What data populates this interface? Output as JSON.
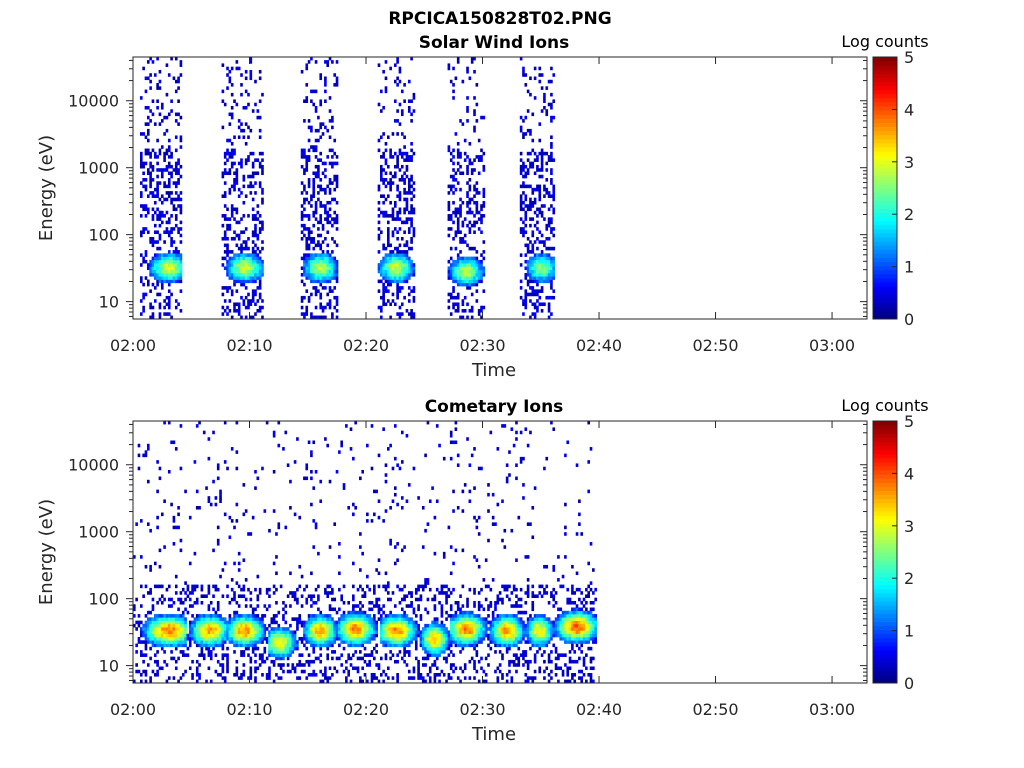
{
  "figure": {
    "title": "RPCICA150828T02.PNG"
  },
  "colorbar": {
    "label": "Log counts",
    "range": [
      0,
      5
    ],
    "ticks": [
      "0",
      "1",
      "2",
      "3",
      "4",
      "5"
    ],
    "colormap": "jet",
    "colors": [
      "#00008f",
      "#0000ff",
      "#0080ff",
      "#00ffff",
      "#80ff80",
      "#ffff00",
      "#ff8000",
      "#ff0000",
      "#800000"
    ]
  },
  "chart_data": [
    {
      "type": "heatmap",
      "title": "Solar Wind Ions",
      "xlabel": "Time",
      "ylabel": "Energy (eV)",
      "xticks": [
        "02:00",
        "02:10",
        "02:20",
        "02:30",
        "02:40",
        "02:50",
        "03:00"
      ],
      "xlim_minutes": [
        0,
        63
      ],
      "yticks": [
        "10",
        "100",
        "1000",
        "10000"
      ],
      "yscale": "log",
      "ylim": [
        5.5,
        45000
      ],
      "data_end_minute": 40,
      "bursts": [
        {
          "start_min": 0.5,
          "end_min": 4.2,
          "peak_min": 3.0,
          "peak_energy_eV": 32,
          "peak_log_counts": 2.9
        },
        {
          "start_min": 7.5,
          "end_min": 11.0,
          "peak_min": 9.5,
          "peak_energy_eV": 32,
          "peak_log_counts": 2.9
        },
        {
          "start_min": 14.2,
          "end_min": 17.5,
          "peak_min": 16.0,
          "peak_energy_eV": 32,
          "peak_log_counts": 2.8
        },
        {
          "start_min": 20.8,
          "end_min": 24.0,
          "peak_min": 22.5,
          "peak_energy_eV": 32,
          "peak_log_counts": 2.9
        },
        {
          "start_min": 26.8,
          "end_min": 30.0,
          "peak_min": 28.5,
          "peak_energy_eV": 28,
          "peak_log_counts": 2.8
        },
        {
          "start_min": 33.0,
          "end_min": 36.0,
          "peak_min": 35.0,
          "peak_energy_eV": 32,
          "peak_log_counts": 2.6
        }
      ]
    },
    {
      "type": "heatmap",
      "title": "Cometary Ions",
      "xlabel": "Time",
      "ylabel": "Energy (eV)",
      "xticks": [
        "02:00",
        "02:10",
        "02:20",
        "02:30",
        "02:40",
        "02:50",
        "03:00"
      ],
      "xlim_minutes": [
        0,
        63
      ],
      "yticks": [
        "10",
        "100",
        "1000",
        "10000"
      ],
      "yscale": "log",
      "ylim": [
        5.5,
        45000
      ],
      "data_end_minute": 40,
      "bursts": [
        {
          "start_min": 0.0,
          "end_min": 4.5,
          "peak_min": 3.0,
          "peak_energy_eV": 33,
          "peak_log_counts": 3.8
        },
        {
          "start_min": 4.5,
          "end_min": 8.0,
          "peak_min": 6.5,
          "peak_energy_eV": 33,
          "peak_log_counts": 3.6
        },
        {
          "start_min": 8.0,
          "end_min": 11.5,
          "peak_min": 9.5,
          "peak_energy_eV": 33,
          "peak_log_counts": 3.7
        },
        {
          "start_min": 11.5,
          "end_min": 14.5,
          "peak_min": 12.5,
          "peak_energy_eV": 22,
          "peak_log_counts": 3.2
        },
        {
          "start_min": 14.5,
          "end_min": 17.5,
          "peak_min": 16.0,
          "peak_energy_eV": 33,
          "peak_log_counts": 3.6
        },
        {
          "start_min": 17.5,
          "end_min": 21.0,
          "peak_min": 19.0,
          "peak_energy_eV": 35,
          "peak_log_counts": 3.8
        },
        {
          "start_min": 21.0,
          "end_min": 24.5,
          "peak_min": 22.5,
          "peak_energy_eV": 33,
          "peak_log_counts": 3.8
        },
        {
          "start_min": 24.5,
          "end_min": 27.0,
          "peak_min": 25.8,
          "peak_energy_eV": 25,
          "peak_log_counts": 3.6
        },
        {
          "start_min": 27.0,
          "end_min": 30.5,
          "peak_min": 28.5,
          "peak_energy_eV": 35,
          "peak_log_counts": 3.8
        },
        {
          "start_min": 30.5,
          "end_min": 33.5,
          "peak_min": 32.0,
          "peak_energy_eV": 33,
          "peak_log_counts": 3.7
        },
        {
          "start_min": 33.5,
          "end_min": 36.0,
          "peak_min": 34.8,
          "peak_energy_eV": 33,
          "peak_log_counts": 3.2
        },
        {
          "start_min": 36.0,
          "end_min": 39.8,
          "peak_min": 38.0,
          "peak_energy_eV": 38,
          "peak_log_counts": 4.0
        }
      ]
    }
  ]
}
